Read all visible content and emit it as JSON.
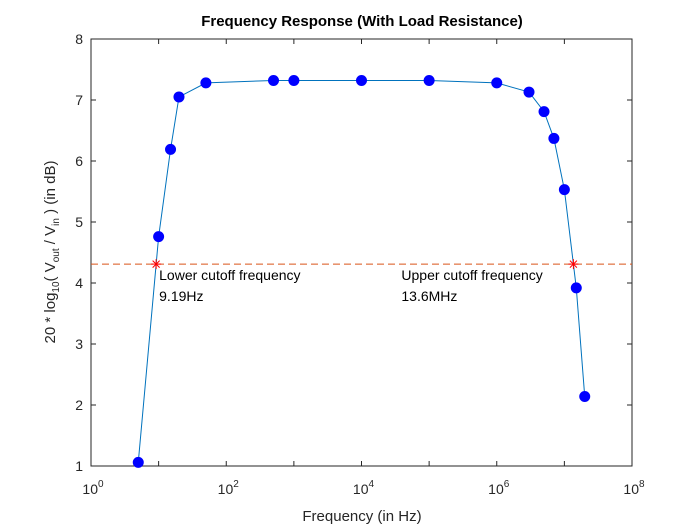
{
  "chart_data": {
    "type": "line",
    "title": "Frequency Response (With Load Resistance)",
    "xlabel": "Frequency (in Hz)",
    "ylabel": {
      "prefix": "20 * log",
      "log_base": "10",
      "open": "( V",
      "num_sub": "out",
      "sep": "  /  V",
      "den_sub": "in",
      "suffix": " ) (in dB)"
    },
    "xscale": "log",
    "xlim": [
      1,
      100000000
    ],
    "ylim": [
      1,
      8
    ],
    "grid": false,
    "x_ticks": [
      {
        "base": "10",
        "exp": "0"
      },
      {
        "base": "10",
        "exp": "2"
      },
      {
        "base": "10",
        "exp": "4"
      },
      {
        "base": "10",
        "exp": "6"
      },
      {
        "base": "10",
        "exp": "8"
      }
    ],
    "y_ticks": [
      "1",
      "2",
      "3",
      "4",
      "5",
      "6",
      "7",
      "8"
    ],
    "series": [
      {
        "color": "#0072BD",
        "marker_color": "#0000FF",
        "x": [
          5,
          10,
          15,
          20,
          50,
          500,
          1000,
          10000,
          100000,
          1000000,
          3000000,
          5000000,
          7000000,
          10000000,
          15000000,
          20000000
        ],
        "y": [
          1.06,
          4.76,
          6.19,
          7.05,
          7.28,
          7.32,
          7.32,
          7.32,
          7.32,
          7.28,
          7.13,
          6.81,
          6.37,
          5.53,
          3.92,
          2.14
        ]
      }
    ],
    "cutoff_level": 4.31,
    "cutoff_line_color": "#D95319",
    "cutoff_markers": [
      {
        "x": 9.19,
        "y": 4.31,
        "label": "Lower cutoff frequency",
        "value_label": "9.19Hz"
      },
      {
        "x": 13600000,
        "y": 4.31,
        "label": "Upper cutoff frequency",
        "value_label": "13.6MHz"
      }
    ]
  }
}
